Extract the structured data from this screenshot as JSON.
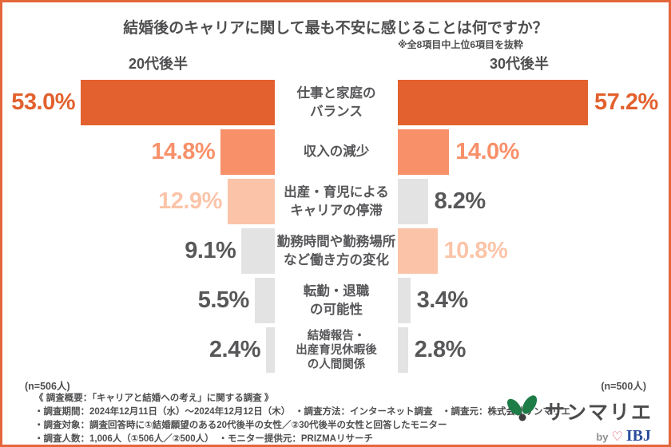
{
  "frame": {
    "border_color": "#E4673C",
    "background": "#FFFFFF"
  },
  "title": "結婚後のキャリアに関して最も不安に感じることは何ですか？",
  "subtitle": "※全8項目中上位6項目を抜粋",
  "columns": {
    "left": "20代後半",
    "right": "30代後半"
  },
  "sample_sizes": {
    "left": "(n=506人)",
    "right": "(n=500人)"
  },
  "chart_data": {
    "type": "bar",
    "variant": "diverging-butterfly-horizontal",
    "title": "結婚後のキャリアに関して最も不安に感じることは何ですか？",
    "note": "※全8項目中上位6項目を抜粋",
    "value_suffix": "%",
    "axis_range": [
      0,
      60
    ],
    "categories": [
      "仕事と家庭のバランス",
      "収入の減少",
      "出産・育児によるキャリアの停滞",
      "勤務時間や勤務場所など働き方の変化",
      "転勤・退職の可能性",
      "結婚報告・出産育児休暇後の人間関係"
    ],
    "category_lines": [
      [
        "仕事と家庭の",
        "バランス"
      ],
      [
        "収入の減少"
      ],
      [
        "出産・育児による",
        "キャリアの停滞"
      ],
      [
        "勤務時間や勤務場所",
        "など働き方の変化"
      ],
      [
        "転勤・退職",
        "の可能性"
      ],
      [
        "結婚報告・",
        "出産育児休暇後",
        "の人間関係"
      ]
    ],
    "series": [
      {
        "name": "20代後半",
        "n": 506,
        "values": [
          53.0,
          14.8,
          12.9,
          9.1,
          5.5,
          2.4
        ]
      },
      {
        "name": "30代後半",
        "n": 500,
        "values": [
          57.2,
          14.0,
          8.2,
          10.8,
          3.4,
          2.8
        ]
      }
    ],
    "bar_colors": {
      "left": [
        "dark",
        "salmon",
        "peach",
        "gray",
        "gray",
        "gray"
      ],
      "right": [
        "dark",
        "salmon",
        "gray",
        "peach",
        "gray",
        "gray"
      ]
    },
    "palette": {
      "dark": "#E2612E",
      "salmon": "#F8906A",
      "peach": "#FBC4A8",
      "gray": "#E3E3E3",
      "gray_text": "#58585A",
      "label_text": "#57575A"
    },
    "legend_position": "column headers top",
    "grid": false
  },
  "footer": {
    "lines": [
      "《 調査概要：「キャリアと結婚への考え」に関する調査 》",
      "・調査期間：2024年12月11日（水）〜2024年12月12日（木）　・調査方法：インターネット調査　・調査元：株式会社サンマリエ",
      "・調査対象：調査回答時に①結婚願望のある20代後半の女性／②30代後半の女性と回答したモニター",
      "・調査人数：1,006人（①506人／②500人）　・モニター提供元：PRIZMAリサーチ"
    ]
  },
  "logo": {
    "brand": "サンマリエ",
    "by": "by",
    "heart": "♡",
    "partner": "IBJ",
    "leaf_color": "#1E7C47",
    "dot_color": "#3E3E40"
  }
}
